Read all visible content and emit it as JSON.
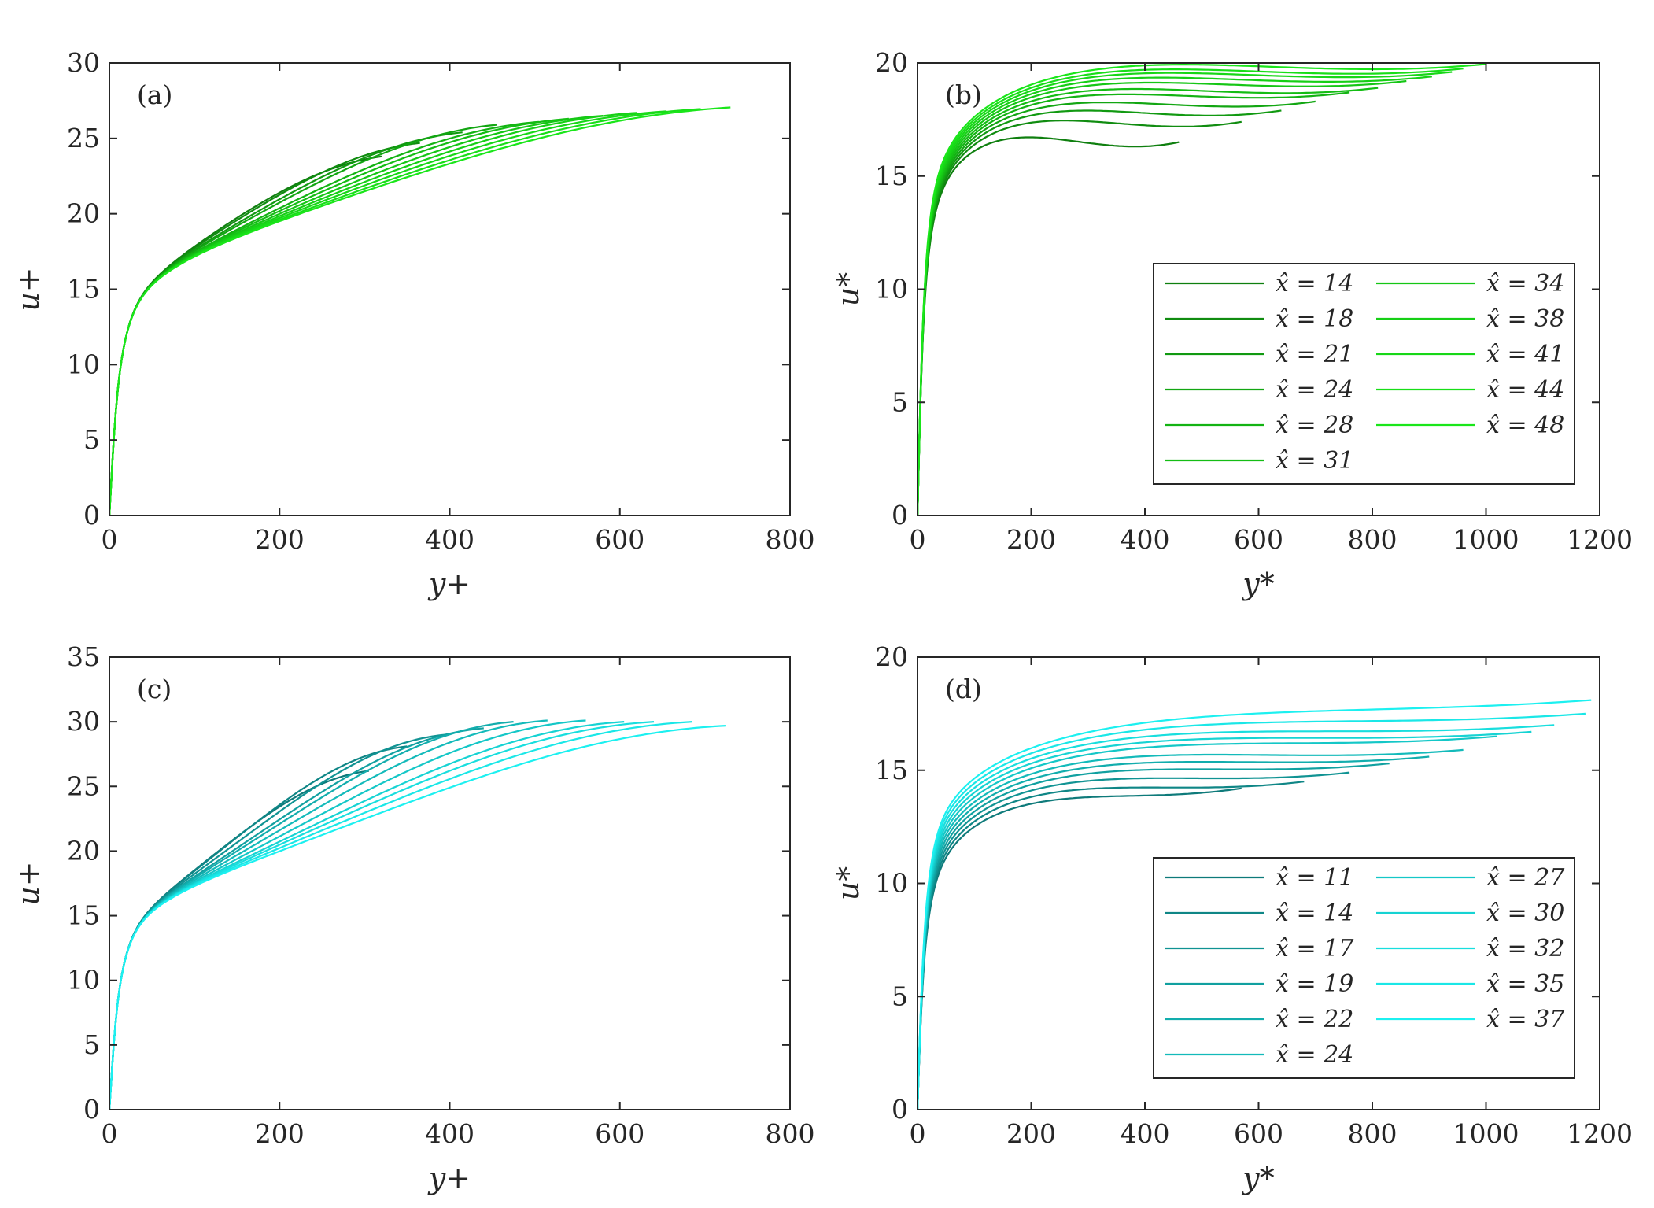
{
  "chart_data": [
    {
      "type": "line",
      "panel_tag": "(a)",
      "xlabel": "y+",
      "ylabel": "u+",
      "xlim": [
        0,
        800
      ],
      "ylim": [
        0,
        30
      ],
      "xticks": [
        "0",
        "200",
        "400",
        "600",
        "800"
      ],
      "yticks": [
        "0",
        "5",
        "10",
        "15",
        "20",
        "25",
        "30"
      ],
      "legend": null,
      "series": [
        {
          "name": "x̂ = 14",
          "color": "#0f7f0f",
          "end": [
            320,
            23.8
          ]
        },
        {
          "name": "x̂ = 18",
          "color": "#108c10",
          "end": [
            365,
            24.7
          ]
        },
        {
          "name": "x̂ = 21",
          "color": "#119911",
          "end": [
            415,
            25.4
          ]
        },
        {
          "name": "x̂ = 24",
          "color": "#12a612",
          "end": [
            455,
            25.9
          ]
        },
        {
          "name": "x̂ = 28",
          "color": "#13b313",
          "end": [
            505,
            26.1
          ]
        },
        {
          "name": "x̂ = 31",
          "color": "#14bd14",
          "end": [
            540,
            26.3
          ]
        },
        {
          "name": "x̂ = 34",
          "color": "#15c615",
          "end": [
            580,
            26.5
          ]
        },
        {
          "name": "x̂ = 38",
          "color": "#16cf16",
          "end": [
            620,
            26.7
          ]
        },
        {
          "name": "x̂ = 41",
          "color": "#17d717",
          "end": [
            655,
            26.8
          ]
        },
        {
          "name": "x̂ = 44",
          "color": "#18de18",
          "end": [
            695,
            26.95
          ]
        },
        {
          "name": "x̂ = 48",
          "color": "#1ae61a",
          "end": [
            730,
            27.05
          ]
        }
      ]
    },
    {
      "type": "line",
      "panel_tag": "(b)",
      "xlabel": "y*",
      "ylabel": "u*",
      "xlim": [
        0,
        1200
      ],
      "ylim": [
        0,
        20
      ],
      "xticks": [
        "0",
        "200",
        "400",
        "600",
        "800",
        "1000",
        "1200"
      ],
      "yticks": [
        "0",
        "5",
        "10",
        "15",
        "20"
      ],
      "legend": {
        "columns": 2,
        "location": "lower-right"
      },
      "series": [
        {
          "name": "x̂ = 14",
          "color": "#0f7f0f",
          "end": [
            460,
            16.5
          ]
        },
        {
          "name": "x̂ = 18",
          "color": "#108c10",
          "end": [
            570,
            17.4
          ]
        },
        {
          "name": "x̂ = 21",
          "color": "#119911",
          "end": [
            640,
            17.9
          ]
        },
        {
          "name": "x̂ = 24",
          "color": "#12a612",
          "end": [
            700,
            18.3
          ]
        },
        {
          "name": "x̂ = 28",
          "color": "#13b313",
          "end": [
            760,
            18.7
          ]
        },
        {
          "name": "x̂ = 31",
          "color": "#14bd14",
          "end": [
            810,
            18.9
          ]
        },
        {
          "name": "x̂ = 34",
          "color": "#15c615",
          "end": [
            860,
            19.2
          ]
        },
        {
          "name": "x̂ = 38",
          "color": "#16cf16",
          "end": [
            905,
            19.4
          ]
        },
        {
          "name": "x̂ = 41",
          "color": "#17d717",
          "end": [
            940,
            19.6
          ]
        },
        {
          "name": "x̂ = 44",
          "color": "#18de18",
          "end": [
            960,
            19.75
          ]
        },
        {
          "name": "x̂ = 48",
          "color": "#1ae61a",
          "end": [
            1000,
            19.95
          ]
        }
      ]
    },
    {
      "type": "line",
      "panel_tag": "(c)",
      "xlabel": "y+",
      "ylabel": "u+",
      "xlim": [
        0,
        800
      ],
      "ylim": [
        0,
        35
      ],
      "xticks": [
        "0",
        "200",
        "400",
        "600",
        "800"
      ],
      "yticks": [
        "0",
        "5",
        "10",
        "15",
        "20",
        "25",
        "30",
        "35"
      ],
      "legend": null,
      "series": [
        {
          "name": "x̂ = 11",
          "color": "#0e7a7a",
          "end": [
            305,
            26.2
          ]
        },
        {
          "name": "x̂ = 14",
          "color": "#0f8686",
          "end": [
            350,
            28.1
          ]
        },
        {
          "name": "x̂ = 17",
          "color": "#109393",
          "end": [
            395,
            29.0
          ]
        },
        {
          "name": "x̂ = 19",
          "color": "#11a0a0",
          "end": [
            440,
            29.5
          ]
        },
        {
          "name": "x̂ = 22",
          "color": "#12adad",
          "end": [
            475,
            30.0
          ]
        },
        {
          "name": "x̂ = 24",
          "color": "#13baba",
          "end": [
            515,
            30.1
          ]
        },
        {
          "name": "x̂ = 27",
          "color": "#14c7c7",
          "end": [
            560,
            30.1
          ]
        },
        {
          "name": "x̂ = 30",
          "color": "#16d3d3",
          "end": [
            605,
            30.0
          ]
        },
        {
          "name": "x̂ = 32",
          "color": "#18dede",
          "end": [
            640,
            30.0
          ]
        },
        {
          "name": "x̂ = 35",
          "color": "#1ae7e7",
          "end": [
            685,
            30.0
          ]
        },
        {
          "name": "x̂ = 37",
          "color": "#1cf0f0",
          "end": [
            725,
            29.7
          ]
        }
      ]
    },
    {
      "type": "line",
      "panel_tag": "(d)",
      "xlabel": "y*",
      "ylabel": "u*",
      "xlim": [
        0,
        1200
      ],
      "ylim": [
        0,
        20
      ],
      "xticks": [
        "0",
        "200",
        "400",
        "600",
        "800",
        "1000",
        "1200"
      ],
      "yticks": [
        "0",
        "5",
        "10",
        "15",
        "20"
      ],
      "legend": {
        "columns": 2,
        "location": "lower-right"
      },
      "series": [
        {
          "name": "x̂ = 11",
          "color": "#0e7a7a",
          "end": [
            570,
            14.2
          ]
        },
        {
          "name": "x̂ = 14",
          "color": "#0f8686",
          "end": [
            680,
            14.5
          ]
        },
        {
          "name": "x̂ = 17",
          "color": "#109393",
          "end": [
            760,
            14.9
          ]
        },
        {
          "name": "x̂ = 19",
          "color": "#11a0a0",
          "end": [
            830,
            15.3
          ]
        },
        {
          "name": "x̂ = 22",
          "color": "#12adad",
          "end": [
            900,
            15.6
          ]
        },
        {
          "name": "x̂ = 24",
          "color": "#13baba",
          "end": [
            960,
            15.9
          ]
        },
        {
          "name": "x̂ = 27",
          "color": "#14c7c7",
          "end": [
            1020,
            16.5
          ]
        },
        {
          "name": "x̂ = 30",
          "color": "#16d3d3",
          "end": [
            1080,
            16.7
          ]
        },
        {
          "name": "x̂ = 32",
          "color": "#18dede",
          "end": [
            1120,
            17.0
          ]
        },
        {
          "name": "x̂ = 35",
          "color": "#1ae7e7",
          "end": [
            1175,
            17.5
          ]
        },
        {
          "name": "x̂ = 37",
          "color": "#1cf0f0",
          "end": [
            1185,
            18.1
          ]
        }
      ]
    }
  ]
}
